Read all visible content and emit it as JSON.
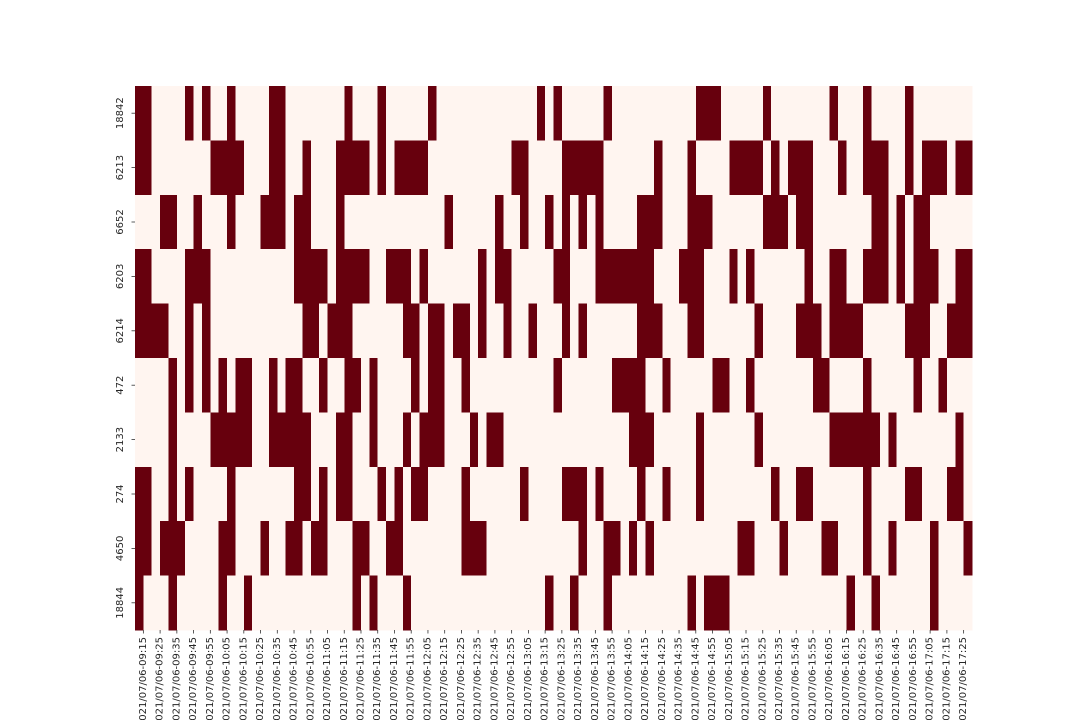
{
  "chart_data": {
    "type": "heatmap",
    "title": "",
    "xlabel": "",
    "ylabel": "",
    "colorbar": false,
    "colors": {
      "off": "#fff5f0",
      "on": "#67000d"
    },
    "x_tick_labels": [
      "2021/07/06-09:15",
      "2021/07/06-09:25",
      "2021/07/06-09:35",
      "2021/07/06-09:45",
      "2021/07/06-09:55",
      "2021/07/06-10:05",
      "2021/07/06-10:15",
      "2021/07/06-10:25",
      "2021/07/06-10:35",
      "2021/07/06-10:45",
      "2021/07/06-10:55",
      "2021/07/06-11:05",
      "2021/07/06-11:15",
      "2021/07/06-11:25",
      "2021/07/06-11:35",
      "2021/07/06-11:45",
      "2021/07/06-11:55",
      "2021/07/06-12:05",
      "2021/07/06-12:15",
      "2021/07/06-12:25",
      "2021/07/06-12:35",
      "2021/07/06-12:45",
      "2021/07/06-12:55",
      "2021/07/06-13:05",
      "2021/07/06-13:15",
      "2021/07/06-13:25",
      "2021/07/06-13:35",
      "2021/07/06-13:45",
      "2021/07/06-13:55",
      "2021/07/06-14:05",
      "2021/07/06-14:15",
      "2021/07/06-14:25",
      "2021/07/06-14:35",
      "2021/07/06-14:45",
      "2021/07/06-14:55",
      "2021/07/06-15:05",
      "2021/07/06-15:15",
      "2021/07/06-15:25",
      "2021/07/06-15:35",
      "2021/07/06-15:45",
      "2021/07/06-15:55",
      "2021/07/06-16:05",
      "2021/07/06-16:15",
      "2021/07/06-16:25",
      "2021/07/06-16:35",
      "2021/07/06-16:45",
      "2021/07/06-16:55",
      "2021/07/06-17:05",
      "2021/07/06-17:15",
      "2021/07/06-17:25"
    ],
    "y_categories": [
      "18842",
      "6213",
      "6652",
      "6203",
      "6214",
      "472",
      "2133",
      "274",
      "4650",
      "18844"
    ],
    "values": [
      [
        1,
        1,
        0,
        0,
        0,
        0,
        1,
        0,
        1,
        0,
        0,
        1,
        0,
        0,
        0,
        0,
        1,
        1,
        0,
        0,
        0,
        0,
        0,
        0,
        0,
        1,
        0,
        0,
        0,
        1,
        0,
        0,
        0,
        0,
        0,
        1,
        0,
        0,
        0,
        0,
        0,
        0,
        0,
        0,
        0,
        0,
        0,
        0,
        1,
        0,
        1,
        0,
        0,
        0,
        0,
        0,
        1,
        0,
        0,
        0,
        0,
        0,
        0,
        0,
        0,
        0,
        0,
        1,
        1,
        1,
        0,
        0,
        0,
        0,
        0,
        1,
        0,
        0,
        0,
        0,
        0,
        0,
        0,
        1,
        0,
        0,
        0,
        1,
        0,
        0,
        0,
        0,
        1,
        0,
        0,
        0,
        0,
        0,
        0,
        0
      ],
      [
        1,
        1,
        0,
        0,
        0,
        0,
        0,
        0,
        0,
        1,
        1,
        1,
        1,
        0,
        0,
        0,
        1,
        1,
        0,
        0,
        1,
        0,
        0,
        0,
        1,
        1,
        1,
        1,
        0,
        1,
        0,
        1,
        1,
        1,
        1,
        0,
        0,
        0,
        0,
        0,
        0,
        0,
        0,
        0,
        0,
        1,
        1,
        0,
        0,
        0,
        0,
        1,
        1,
        1,
        1,
        1,
        0,
        0,
        0,
        0,
        0,
        0,
        1,
        0,
        0,
        0,
        1,
        0,
        0,
        0,
        0,
        1,
        1,
        1,
        1,
        0,
        1,
        0,
        1,
        1,
        1,
        0,
        0,
        0,
        1,
        0,
        0,
        1,
        1,
        1,
        0,
        0,
        1,
        0,
        1,
        1,
        1,
        0,
        1,
        1
      ],
      [
        0,
        0,
        0,
        1,
        1,
        0,
        0,
        1,
        0,
        0,
        0,
        1,
        0,
        0,
        0,
        1,
        1,
        1,
        0,
        1,
        1,
        0,
        0,
        0,
        1,
        0,
        0,
        0,
        0,
        0,
        0,
        0,
        0,
        0,
        0,
        0,
        0,
        1,
        0,
        0,
        0,
        0,
        0,
        1,
        0,
        0,
        1,
        0,
        0,
        1,
        0,
        1,
        0,
        1,
        0,
        1,
        0,
        0,
        0,
        0,
        1,
        1,
        1,
        0,
        0,
        0,
        1,
        1,
        1,
        0,
        0,
        0,
        0,
        0,
        0,
        1,
        1,
        1,
        0,
        1,
        1,
        0,
        0,
        0,
        0,
        0,
        0,
        0,
        1,
        1,
        0,
        1,
        0,
        1,
        1,
        0,
        0,
        0,
        0,
        0
      ],
      [
        1,
        1,
        0,
        0,
        0,
        0,
        1,
        1,
        1,
        0,
        0,
        0,
        0,
        0,
        0,
        0,
        0,
        0,
        0,
        1,
        1,
        1,
        1,
        0,
        1,
        1,
        1,
        1,
        0,
        0,
        1,
        1,
        1,
        0,
        1,
        0,
        0,
        0,
        0,
        0,
        0,
        1,
        0,
        1,
        1,
        0,
        0,
        0,
        0,
        0,
        1,
        1,
        0,
        0,
        0,
        1,
        1,
        1,
        1,
        1,
        1,
        1,
        0,
        0,
        0,
        1,
        1,
        1,
        0,
        0,
        0,
        1,
        0,
        1,
        0,
        0,
        0,
        0,
        0,
        0,
        1,
        0,
        0,
        1,
        1,
        0,
        0,
        1,
        1,
        1,
        0,
        1,
        0,
        1,
        1,
        1,
        0,
        0,
        1,
        1
      ],
      [
        1,
        1,
        1,
        1,
        0,
        0,
        1,
        0,
        1,
        0,
        0,
        0,
        0,
        0,
        0,
        0,
        0,
        0,
        0,
        0,
        1,
        1,
        0,
        1,
        1,
        1,
        0,
        0,
        0,
        0,
        0,
        0,
        1,
        1,
        0,
        1,
        1,
        0,
        1,
        1,
        0,
        1,
        0,
        0,
        1,
        0,
        0,
        1,
        0,
        0,
        0,
        1,
        0,
        1,
        0,
        0,
        0,
        0,
        0,
        0,
        1,
        1,
        1,
        0,
        0,
        0,
        1,
        1,
        0,
        0,
        0,
        0,
        0,
        0,
        1,
        0,
        0,
        0,
        0,
        1,
        1,
        1,
        0,
        1,
        1,
        1,
        1,
        0,
        0,
        0,
        0,
        0,
        1,
        1,
        1,
        0,
        0,
        1,
        1,
        1
      ],
      [
        0,
        0,
        0,
        0,
        1,
        0,
        1,
        0,
        1,
        0,
        1,
        0,
        1,
        1,
        0,
        0,
        1,
        0,
        1,
        1,
        0,
        0,
        1,
        0,
        0,
        1,
        1,
        0,
        1,
        0,
        0,
        0,
        0,
        1,
        0,
        1,
        1,
        0,
        0,
        1,
        0,
        0,
        0,
        0,
        0,
        0,
        0,
        0,
        0,
        0,
        1,
        0,
        0,
        0,
        0,
        0,
        0,
        1,
        1,
        1,
        1,
        0,
        0,
        1,
        0,
        0,
        0,
        0,
        0,
        1,
        1,
        0,
        0,
        1,
        0,
        0,
        0,
        0,
        0,
        0,
        0,
        1,
        1,
        0,
        0,
        0,
        0,
        1,
        0,
        0,
        0,
        0,
        0,
        1,
        0,
        0,
        1,
        0,
        0,
        0
      ],
      [
        0,
        0,
        0,
        0,
        1,
        0,
        0,
        0,
        0,
        1,
        1,
        1,
        1,
        1,
        0,
        0,
        1,
        1,
        1,
        1,
        1,
        0,
        0,
        0,
        1,
        1,
        0,
        0,
        1,
        0,
        0,
        0,
        1,
        0,
        1,
        1,
        1,
        0,
        0,
        0,
        1,
        0,
        1,
        1,
        0,
        0,
        0,
        0,
        0,
        0,
        0,
        0,
        0,
        0,
        0,
        0,
        0,
        0,
        0,
        1,
        1,
        1,
        0,
        0,
        0,
        0,
        0,
        1,
        0,
        0,
        0,
        0,
        0,
        0,
        1,
        0,
        0,
        0,
        0,
        0,
        0,
        0,
        0,
        1,
        1,
        1,
        1,
        1,
        1,
        0,
        1,
        0,
        0,
        0,
        0,
        0,
        0,
        0,
        1,
        0
      ],
      [
        1,
        1,
        0,
        0,
        1,
        0,
        1,
        0,
        0,
        0,
        0,
        1,
        0,
        0,
        0,
        0,
        0,
        0,
        0,
        1,
        1,
        0,
        1,
        0,
        1,
        1,
        0,
        0,
        0,
        1,
        0,
        1,
        0,
        1,
        1,
        0,
        0,
        0,
        0,
        1,
        0,
        0,
        0,
        0,
        0,
        0,
        1,
        0,
        0,
        0,
        0,
        1,
        1,
        1,
        0,
        1,
        0,
        0,
        0,
        0,
        1,
        0,
        0,
        1,
        0,
        0,
        0,
        1,
        0,
        0,
        0,
        0,
        0,
        0,
        0,
        0,
        1,
        0,
        0,
        1,
        1,
        0,
        0,
        0,
        0,
        0,
        0,
        1,
        0,
        0,
        0,
        0,
        1,
        1,
        0,
        0,
        0,
        1,
        1,
        0
      ],
      [
        1,
        1,
        0,
        1,
        1,
        1,
        0,
        0,
        0,
        0,
        1,
        1,
        0,
        0,
        0,
        1,
        0,
        0,
        1,
        1,
        0,
        1,
        1,
        0,
        0,
        0,
        1,
        1,
        0,
        0,
        1,
        1,
        0,
        0,
        0,
        0,
        0,
        0,
        0,
        1,
        1,
        1,
        0,
        0,
        0,
        0,
        0,
        0,
        0,
        0,
        0,
        0,
        0,
        1,
        0,
        0,
        1,
        1,
        0,
        1,
        0,
        1,
        0,
        0,
        0,
        0,
        0,
        0,
        0,
        0,
        0,
        0,
        1,
        1,
        0,
        0,
        0,
        1,
        0,
        0,
        0,
        0,
        1,
        1,
        0,
        0,
        0,
        1,
        0,
        0,
        1,
        0,
        0,
        0,
        0,
        1,
        0,
        0,
        0,
        1
      ],
      [
        1,
        0,
        0,
        0,
        1,
        0,
        0,
        0,
        0,
        0,
        1,
        0,
        0,
        1,
        0,
        0,
        0,
        0,
        0,
        0,
        0,
        0,
        0,
        0,
        0,
        0,
        1,
        0,
        1,
        0,
        0,
        0,
        1,
        0,
        0,
        0,
        0,
        0,
        0,
        0,
        0,
        0,
        0,
        0,
        0,
        0,
        0,
        0,
        0,
        1,
        0,
        0,
        1,
        0,
        0,
        0,
        1,
        0,
        0,
        0,
        0,
        0,
        0,
        0,
        0,
        0,
        1,
        0,
        1,
        1,
        1,
        0,
        0,
        0,
        0,
        0,
        0,
        0,
        0,
        0,
        0,
        0,
        0,
        0,
        0,
        1,
        0,
        0,
        1,
        0,
        0,
        0,
        0,
        0,
        0,
        1,
        0,
        0,
        0,
        0
      ]
    ]
  }
}
